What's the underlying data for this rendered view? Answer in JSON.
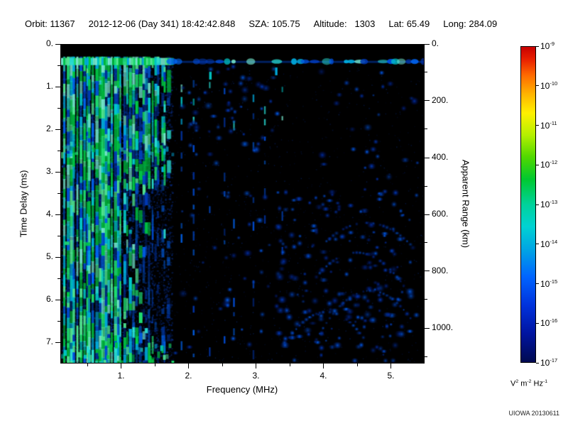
{
  "header": {
    "orbit_label": "Orbit:",
    "orbit": "11367",
    "datetime": "2012-12-06 (Day 341) 18:42:42.848",
    "sza_label": "SZA:",
    "sza": "105.75",
    "altitude_label": "Altitude:",
    "altitude": "1303",
    "lat_label": "Lat:",
    "lat": "65.49",
    "long_label": "Long:",
    "long": "284.09"
  },
  "footer": {
    "credit": "UIOWA 20130611"
  },
  "chart_data": {
    "type": "heatmap",
    "description": "Radar sounder ionogram: received spectral density (V^2 m^-2 Hz^-1, log color scale 1e-17 to 1e-9) versus sounding frequency (0.1-5.5 MHz) and echo time delay (0-7.5 ms, equivalent apparent range 0-1125 km). Strong green/cyan vertical plasma-resonance stripes at frequencies below ~1.75 MHz extending over all delays, a bright horizontal band near 0.35 ms delay across all frequencies, sparse dashed vertical lines near 1.9-3.4 MHz, and diffuse faint blue scattered echoes at 2-5.5 MHz that are densest between 3.3-5.3 MHz at delays greater than 3.5 ms, with arc-like clusters in the lower right.",
    "xlabel": "Frequency (MHz)",
    "ylabel": "Time Delay (ms)",
    "ylabel_right": "Apparent Range (km)",
    "x_range_mhz": [
      0.1,
      5.5
    ],
    "x_ticks": [
      "1.",
      "2.",
      "3.",
      "4.",
      "5."
    ],
    "x_tick_values": [
      1,
      2,
      3,
      4,
      5
    ],
    "y_range_ms": [
      0,
      7.5
    ],
    "y_ticks_left": [
      "0.",
      "1.",
      "2.",
      "3.",
      "4.",
      "5.",
      "6.",
      "7."
    ],
    "y_tick_values_left": [
      0,
      1,
      2,
      3,
      4,
      5,
      6,
      7
    ],
    "y_ticks_right": [
      "0.",
      "200.",
      "400.",
      "600.",
      "800.",
      "1000."
    ],
    "y_tick_values_right_ms": [
      0,
      1.3333,
      2.6667,
      4.0,
      5.3333,
      6.6667
    ],
    "colorbar": {
      "mantissa": "10",
      "tick_exponents": [
        "-9",
        "-10",
        "-11",
        "-12",
        "-13",
        "-14",
        "-15",
        "-16",
        "-17"
      ],
      "unit_parts": [
        {
          "b": "V",
          "e": "2"
        },
        {
          "b": "m",
          "e": "-2"
        },
        {
          "b": "Hz",
          "e": "-1"
        }
      ],
      "gradient_stops": [
        {
          "pos": 0,
          "color": "#c80000"
        },
        {
          "pos": 4,
          "color": "#e82000"
        },
        {
          "pos": 9,
          "color": "#ff6a00"
        },
        {
          "pos": 15,
          "color": "#ffb400"
        },
        {
          "pos": 21,
          "color": "#fff000"
        },
        {
          "pos": 28,
          "color": "#b4f000"
        },
        {
          "pos": 35,
          "color": "#50d800"
        },
        {
          "pos": 42,
          "color": "#00c830"
        },
        {
          "pos": 50,
          "color": "#00d29b"
        },
        {
          "pos": 57,
          "color": "#00d2d2"
        },
        {
          "pos": 65,
          "color": "#00a0e6"
        },
        {
          "pos": 73,
          "color": "#0064ff"
        },
        {
          "pos": 82,
          "color": "#0032dc"
        },
        {
          "pos": 91,
          "color": "#0014a0"
        },
        {
          "pos": 100,
          "color": "#000a50"
        }
      ]
    },
    "render": {
      "seed": 1341,
      "background": "#000000",
      "stripe_region_max_mhz": 1.75,
      "surface_band_ms": [
        0.31,
        0.48
      ],
      "stripe_count": 34,
      "noise_colors": [
        "#041a52",
        "#06246e",
        "#0a308c",
        "#04143c"
      ],
      "stripe_colors_green": [
        "#00c846",
        "#1edc6e",
        "#00b43c",
        "#50e691"
      ],
      "stripe_colors_cyan": [
        "#00c8c8",
        "#28dcd2",
        "#00aadc",
        "#73e6cd"
      ],
      "stripe_colors_blue": [
        "#0050e0",
        "#0038b4",
        "#0064f0"
      ],
      "blob_colors": [
        "#0040cc",
        "#0055e6",
        "#002da0",
        "#0066ff"
      ],
      "blob_count": 330,
      "dashed_lines_mhz": [
        1.88,
        2.06,
        2.3,
        2.52,
        2.66,
        2.95,
        3.12,
        3.38
      ],
      "arcs": [
        {
          "f0": 3.7,
          "f1": 5.3,
          "fc": 4.5,
          "t0": 4.9,
          "k": 1.6
        },
        {
          "f0": 3.9,
          "f1": 5.35,
          "fc": 4.7,
          "t0": 5.8,
          "k": 1.8
        },
        {
          "f0": 3.5,
          "f1": 4.6,
          "fc": 4.05,
          "t0": 6.3,
          "k": 2.0
        },
        {
          "f0": 4.0,
          "f1": 5.3,
          "fc": 4.65,
          "t0": 4.2,
          "k": 1.2
        }
      ],
      "extra_marks": [
        {
          "f": 2.32,
          "t": 0.72,
          "c": "cyan"
        },
        {
          "f": 2.62,
          "t": 1.1,
          "c": "blue"
        },
        {
          "f": 2.9,
          "t": 0.8,
          "c": "blue"
        },
        {
          "f": 3.3,
          "t": 0.62,
          "c": "cyan"
        },
        {
          "f": 4.35,
          "t": 0.9,
          "c": "blue"
        },
        {
          "f": 4.5,
          "t": 1.05,
          "c": "blue"
        },
        {
          "f": 5.0,
          "t": 0.92,
          "c": "blue"
        },
        {
          "f": 5.2,
          "t": 1.5,
          "c": "blue"
        },
        {
          "f": 4.2,
          "t": 1.38,
          "c": "blue"
        },
        {
          "f": 2.1,
          "t": 1.6,
          "c": "blue"
        },
        {
          "f": 2.45,
          "t": 2.2,
          "c": "blue"
        },
        {
          "f": 0.18,
          "t": 4.68,
          "c": "green"
        },
        {
          "f": 0.5,
          "t": 4.7,
          "c": "green"
        }
      ]
    }
  }
}
